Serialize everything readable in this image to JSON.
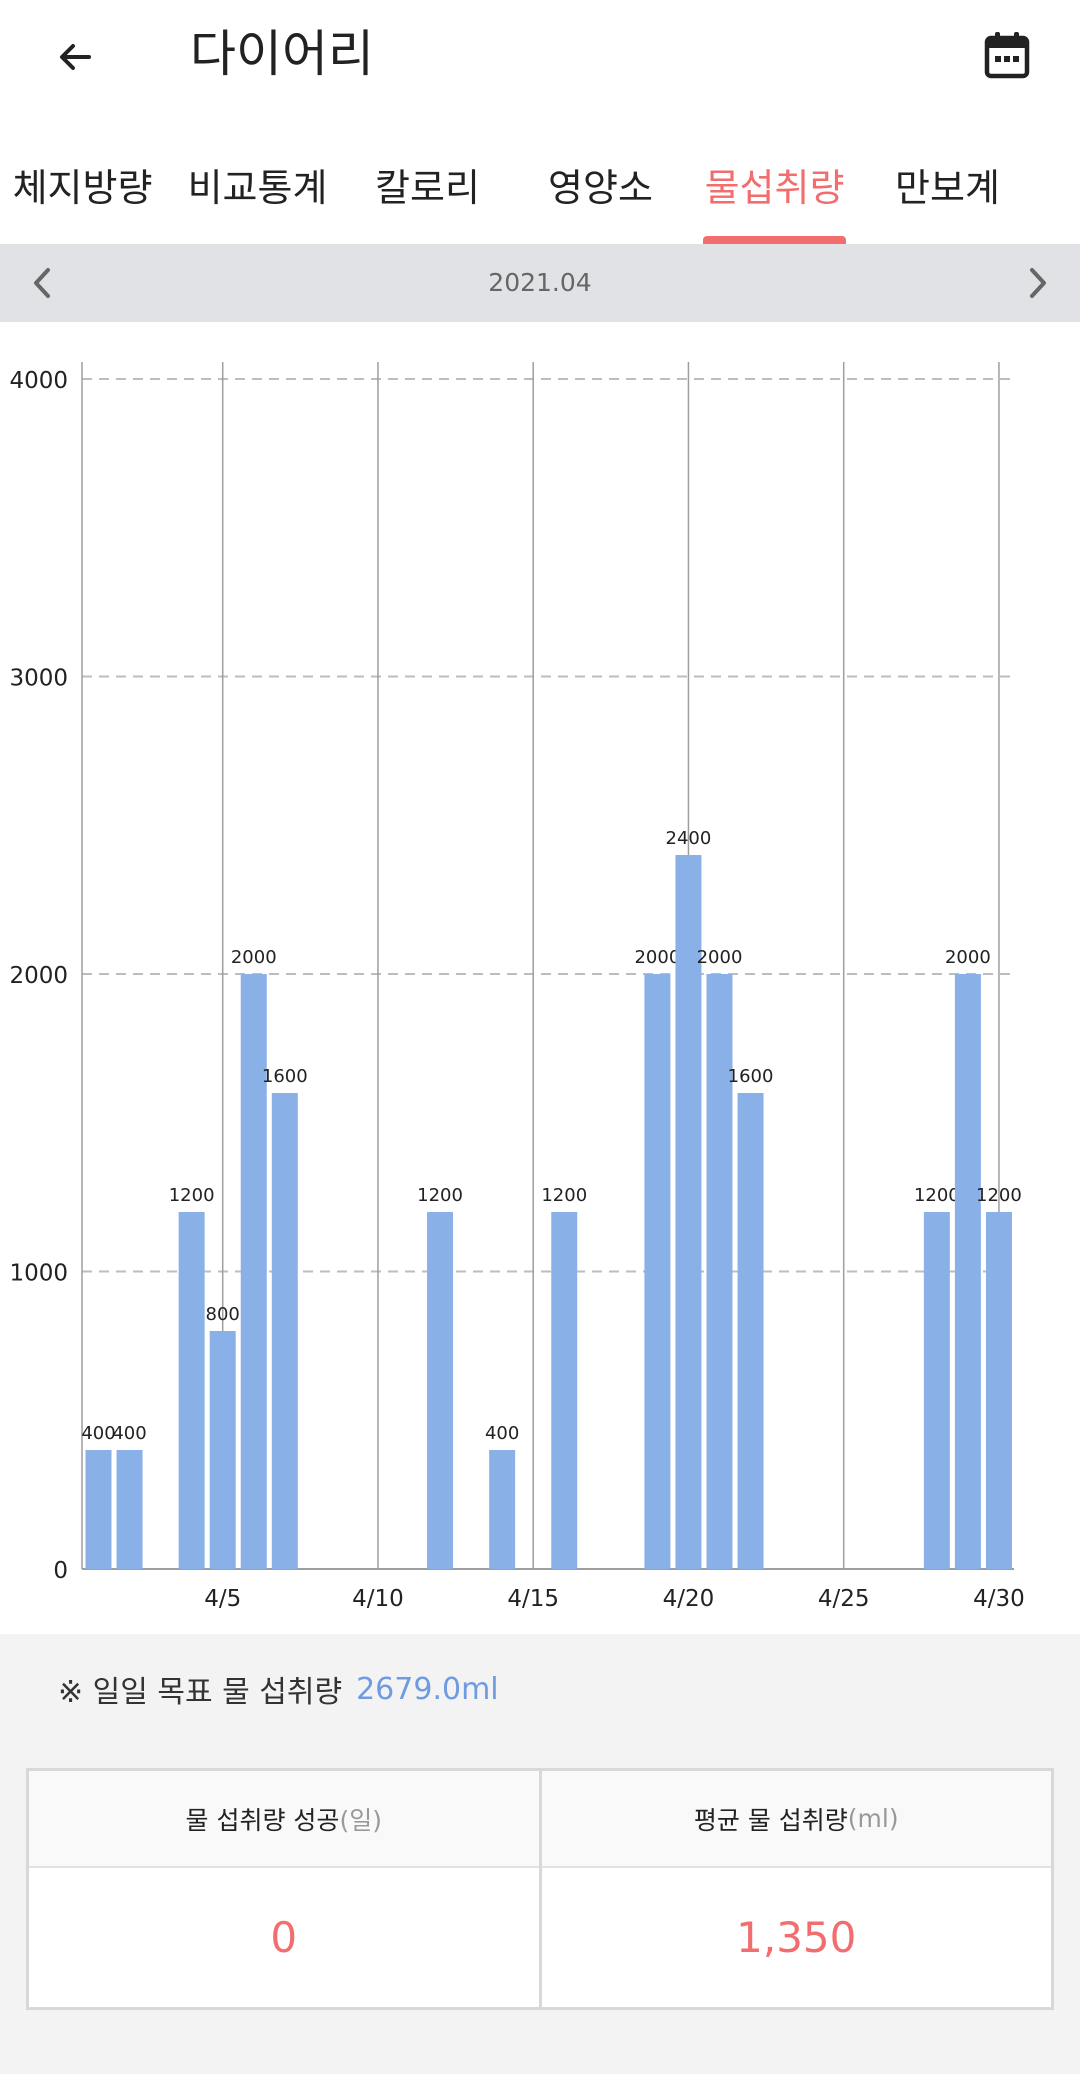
{
  "header": {
    "title": "다이어리",
    "back_icon": "arrow-left-icon",
    "calendar_icon": "calendar-icon"
  },
  "tabs": [
    {
      "label": "체지방량",
      "active": false
    },
    {
      "label": "비교통계",
      "active": false
    },
    {
      "label": "칼로리",
      "active": false
    },
    {
      "label": "영양소",
      "active": false
    },
    {
      "label": "물섭취량",
      "active": true
    },
    {
      "label": "만보계",
      "active": false
    }
  ],
  "month": {
    "label": "2021.04",
    "prev_icon": "chevron-left-icon",
    "next_icon": "chevron-right-icon"
  },
  "chart_data": {
    "type": "bar",
    "x": [
      1,
      2,
      3,
      4,
      5,
      6,
      7,
      8,
      9,
      10,
      11,
      12,
      13,
      14,
      15,
      16,
      17,
      18,
      19,
      20,
      21,
      22,
      23,
      24,
      25,
      26,
      27,
      28,
      29,
      30
    ],
    "values": [
      400,
      400,
      null,
      1200,
      800,
      2000,
      1600,
      null,
      null,
      null,
      null,
      1200,
      null,
      400,
      null,
      1200,
      null,
      null,
      2000,
      2400,
      2000,
      1600,
      null,
      null,
      null,
      null,
      null,
      1200,
      2000,
      1200
    ],
    "x_ticks": [
      "4/5",
      "4/10",
      "4/15",
      "4/20",
      "4/25",
      "4/30"
    ],
    "x_tick_days": [
      5,
      10,
      15,
      20,
      25,
      30
    ],
    "y_ticks": [
      0,
      1000,
      2000,
      3000,
      4000
    ],
    "ylim": [
      0,
      4000
    ],
    "bar_color": "#8ab0e8",
    "grid": true
  },
  "goal": {
    "label": "※ 일일 목표 물 섭취량",
    "value": "2679.0ml"
  },
  "stats": {
    "success_label": "물 섭취량 성공",
    "success_unit": "(일)",
    "success_value": "0",
    "avg_label": "평균 물 섭취량",
    "avg_unit": "(ml)",
    "avg_value": "1,350"
  },
  "colors": {
    "accent": "#f26d6d",
    "goal_value": "#6f9be3"
  }
}
